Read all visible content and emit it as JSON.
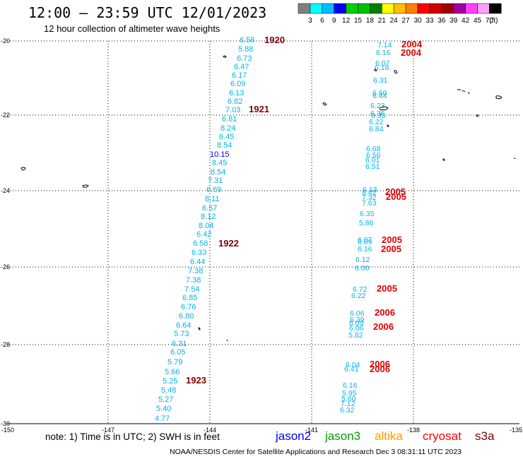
{
  "header": {
    "title": "12:00 – 23:59 UTC 12/01/2023",
    "subtitle": "12 hour collection of altimeter wave heights"
  },
  "colorbar": {
    "unit": "(ft)",
    "labels": [
      "3",
      "6",
      "9",
      "12",
      "15",
      "18",
      "21",
      "24",
      "27",
      "30",
      "33",
      "36",
      "39",
      "42",
      "45",
      "70"
    ],
    "colors": [
      "#808080",
      "#00ffff",
      "#00bfff",
      "#0000ff",
      "#00d000",
      "#00c000",
      "#008000",
      "#ffff00",
      "#ffc000",
      "#ff8000",
      "#ff0000",
      "#d00000",
      "#a00000",
      "#a000a0",
      "#ff40ff",
      "#ffa0ff",
      "#000000"
    ]
  },
  "axes": {
    "lat_labels": [
      "-20",
      "-22",
      "-24",
      "-26",
      "-28",
      "-30"
    ],
    "lon_labels": [
      "-150",
      "-147",
      "-144",
      "-141",
      "-138",
      "-135"
    ]
  },
  "tracks": {
    "track1": {
      "values": [
        "6.58",
        "5.88",
        "6.73",
        "6.47",
        "6.17",
        "6.09",
        "6.13",
        "6.82",
        "7.03",
        "6.81",
        "8.24",
        "6.45",
        "8.54",
        "10.15",
        "8.45",
        "8.54",
        "7.31",
        "6.69",
        "8.11",
        "6.57",
        "8.12",
        "8.04",
        "6.42",
        "6.58",
        "6.33",
        "6.44",
        "7.38",
        "7.38",
        "7.54",
        "6.85",
        "6.76",
        "6.80",
        "6.64",
        "5.73",
        "6.31",
        "6.05",
        "5.79",
        "5.66",
        "5.25",
        "5.48",
        "5.27",
        "5.40",
        "4.77"
      ],
      "times": [
        "1920",
        "1921",
        "1922",
        "1923"
      ]
    },
    "track2": {
      "values": [
        "7.14",
        "6.16",
        "6.07",
        "6.18",
        "6.31",
        "6.60",
        "6.44",
        "6.23",
        "6.36",
        "6.35",
        "6.22",
        "6.84",
        "6.68",
        "6.56",
        "6.01",
        "6.51",
        "6.13",
        "6.42",
        "7.32",
        "7.63",
        "6.35",
        "5.86",
        "6.07",
        "6.09",
        "6.16",
        "6.12",
        "6.00",
        "6.72",
        "6.22",
        "6.06",
        "6.39",
        "6.09",
        "6.06",
        "5.82",
        "6.04",
        "6.41",
        "6.16",
        "5.95",
        "5.60",
        "7.12",
        "6.32"
      ],
      "times": [
        "2004",
        "2004",
        "2005",
        "2005",
        "2005",
        "2005",
        "2005",
        "2006",
        "2006",
        "2006",
        "2006"
      ]
    }
  },
  "note": "note:  1) Time is in UTC;  2) SWH is in feet",
  "legend": [
    {
      "label": "jason2",
      "color": "#0000ff"
    },
    {
      "label": "jason3",
      "color": "#00a000"
    },
    {
      "label": "altika",
      "color": "#ff9900"
    },
    {
      "label": "cryosat",
      "color": "#ff0000"
    },
    {
      "label": "s3a",
      "color": "#800000"
    }
  ],
  "footer": "NOAA/NESDIS Center for Satellite Applications and Research     Dec  3 08:31:11 UTC 2023"
}
